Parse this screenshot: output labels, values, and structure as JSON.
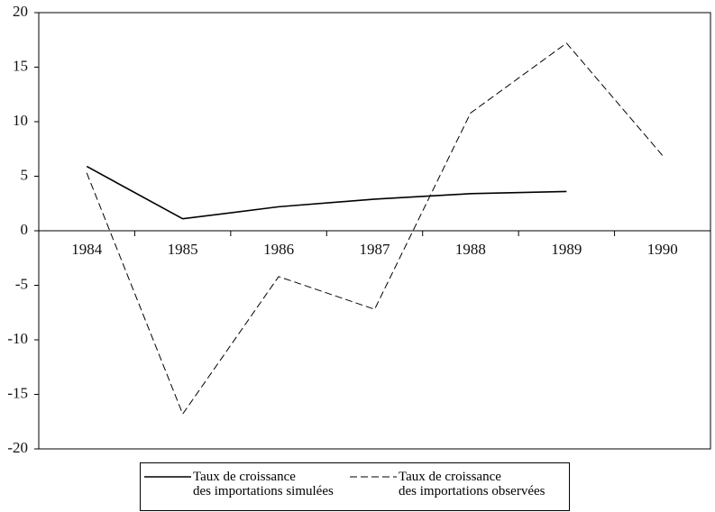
{
  "chart_data": {
    "type": "line",
    "categories": [
      "1984",
      "1985",
      "1986",
      "1987",
      "1988",
      "1989",
      "1990"
    ],
    "series": [
      {
        "name": "Taux de croissance\ndes importations simulées",
        "color": "#000000",
        "dash": "solid",
        "values": [
          5.9,
          1.1,
          2.2,
          2.9,
          3.4,
          3.6,
          null
        ]
      },
      {
        "name": "Taux de croissance\ndes importations observées",
        "color": "#000000",
        "dash": "dashed",
        "values": [
          5.3,
          -16.8,
          -4.2,
          -7.2,
          10.8,
          17.2,
          6.9
        ]
      }
    ],
    "ylim": [
      -20,
      20
    ],
    "yticks": [
      -20,
      -15,
      -10,
      -5,
      0,
      5,
      10,
      15,
      20
    ],
    "legend": "bottom"
  }
}
